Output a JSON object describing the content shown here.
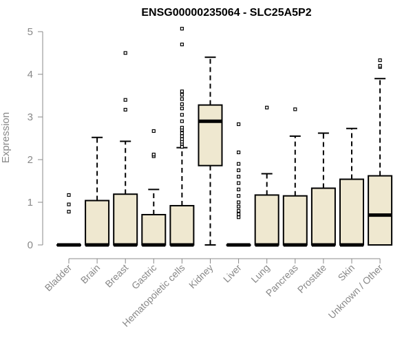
{
  "chart_data": {
    "type": "boxplot",
    "title": "ENSG00000235064 - SLC25A5P2",
    "xlabel": "",
    "ylabel": "Expression",
    "ylim": [
      0,
      5.2
    ],
    "yticks": [
      0,
      1,
      2,
      3,
      4,
      5
    ],
    "grid": false,
    "box_fill": "#efe8d0",
    "categories": [
      "Bladder",
      "Brain",
      "Breast",
      "Gastric",
      "Hematopoietic cells",
      "Kidney",
      "Liver",
      "Lung",
      "Pancreas",
      "Prostate",
      "Skin",
      "Unknown / Other"
    ],
    "boxes": [
      {
        "category": "Bladder",
        "q1": 0,
        "median": 0,
        "q3": 0,
        "whisker_low": 0,
        "whisker_high": 0,
        "outliers": [
          0.78,
          0.95,
          1.17
        ]
      },
      {
        "category": "Brain",
        "q1": 0,
        "median": 0,
        "q3": 1.04,
        "whisker_low": 0,
        "whisker_high": 2.52,
        "outliers": []
      },
      {
        "category": "Breast",
        "q1": 0,
        "median": 0,
        "q3": 1.19,
        "whisker_low": 0,
        "whisker_high": 2.43,
        "outliers": [
          3.17,
          3.4,
          4.5
        ]
      },
      {
        "category": "Gastric",
        "q1": 0,
        "median": 0,
        "q3": 0.71,
        "whisker_low": 0,
        "whisker_high": 1.3,
        "outliers": [
          2.08,
          2.12,
          2.67
        ]
      },
      {
        "category": "Hematopoietic cells",
        "q1": 0,
        "median": 0,
        "q3": 0.92,
        "whisker_low": 0,
        "whisker_high": 2.28,
        "outliers": [
          2.3,
          2.37,
          2.42,
          2.48,
          2.55,
          2.62,
          2.7,
          2.75,
          2.9,
          3.05,
          3.2,
          3.3,
          3.42,
          3.52,
          3.6,
          4.7,
          5.07
        ]
      },
      {
        "category": "Kidney",
        "q1": 1.86,
        "median": 2.9,
        "q3": 3.28,
        "whisker_low": 0,
        "whisker_high": 4.4,
        "outliers": []
      },
      {
        "category": "Liver",
        "q1": 0,
        "median": 0,
        "q3": 0,
        "whisker_low": 0,
        "whisker_high": 0,
        "outliers": [
          0.65,
          0.72,
          0.8,
          0.9,
          1.0,
          1.15,
          1.3,
          1.45,
          1.6,
          1.75,
          1.9,
          2.17,
          2.83
        ]
      },
      {
        "category": "Lung",
        "q1": 0,
        "median": 0,
        "q3": 1.17,
        "whisker_low": 0,
        "whisker_high": 1.67,
        "outliers": [
          3.22
        ]
      },
      {
        "category": "Pancreas",
        "q1": 0,
        "median": 0,
        "q3": 1.15,
        "whisker_low": 0,
        "whisker_high": 2.55,
        "outliers": [
          3.18
        ]
      },
      {
        "category": "Prostate",
        "q1": 0,
        "median": 0,
        "q3": 1.33,
        "whisker_low": 0,
        "whisker_high": 2.62,
        "outliers": []
      },
      {
        "category": "Skin",
        "q1": 0,
        "median": 0,
        "q3": 1.54,
        "whisker_low": 0,
        "whisker_high": 2.73,
        "outliers": []
      },
      {
        "category": "Unknown / Other",
        "q1": 0,
        "median": 0.7,
        "q3": 1.62,
        "whisker_low": 0,
        "whisker_high": 3.9,
        "outliers": [
          4.17,
          4.2,
          4.33
        ]
      }
    ]
  }
}
